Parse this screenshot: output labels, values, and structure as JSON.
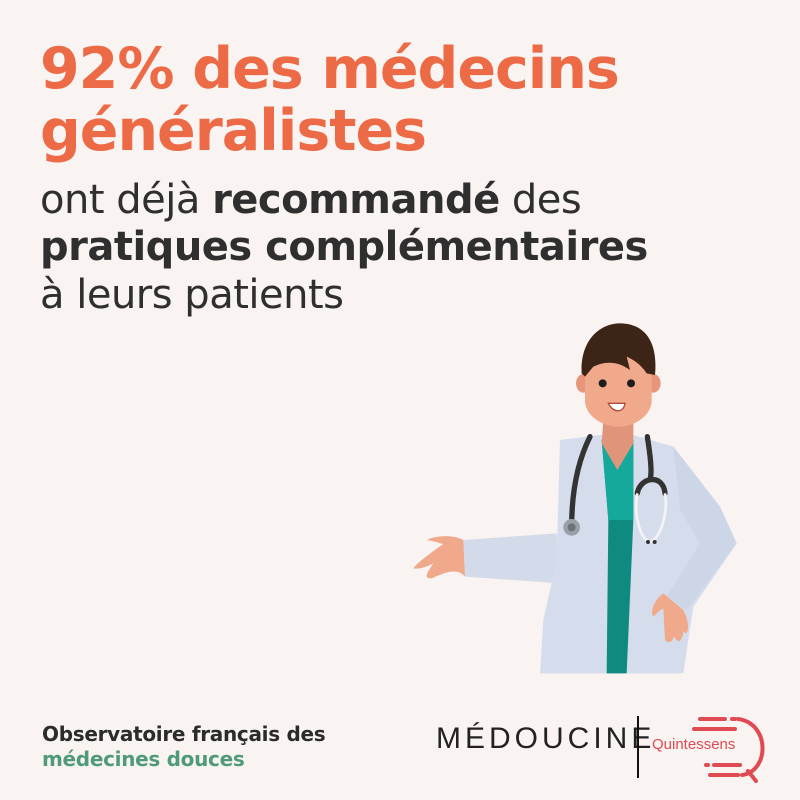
{
  "headline": {
    "line1": "92% des médecins",
    "line2": "généralistes"
  },
  "subtitle": {
    "line1_pre": "ont déjà ",
    "line1_bold": "recommandé",
    "line1_post": " des",
    "line2_bold": "pratiques complémentaires",
    "line3": "à leurs patients"
  },
  "footer": {
    "line1": "Observatoire français des",
    "line2": "médecines douces"
  },
  "logos": {
    "medoucine": "MÉDOUCINE",
    "quintessens": "Quintessens"
  },
  "colors": {
    "accent": "#ec6a45",
    "text": "#2f2f2f",
    "green": "#4f9a78",
    "background": "#f9f4f1",
    "quintessens_red": "#e04a52"
  },
  "illustration": "doctor-with-stethoscope"
}
